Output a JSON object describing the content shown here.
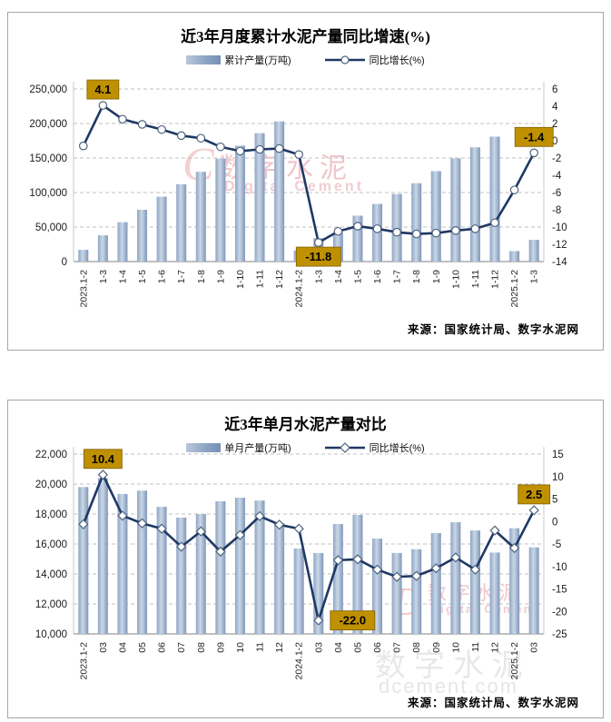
{
  "colors": {
    "bar_gradient": [
      "#8ca5c5",
      "#cbd7e6",
      "#7e97ba"
    ],
    "line": "#1f3864",
    "marker_stroke": "#4f637d",
    "annotation_bg": "#bf9000",
    "annotation_border": "#7f6000",
    "gridline": "#c0c0c0",
    "axis_line": "#9a9a9a"
  },
  "chart_data": [
    {
      "type": "bar+line",
      "title": "近3年月度累计水泥产量同比增速(%)",
      "legend": [
        "累计产量(万吨)",
        "同比增长(%)"
      ],
      "marker": "circle",
      "categories": [
        "2023.1-2",
        "1-3",
        "1-4",
        "1-5",
        "1-6",
        "1-7",
        "1-8",
        "1-9",
        "1-10",
        "1-11",
        "1-12",
        "2024.1-2",
        "1-3",
        "1-4",
        "1-5",
        "1-6",
        "1-7",
        "1-8",
        "1-9",
        "1-10",
        "1-11",
        "1-12",
        "2025.1-2",
        "1-3"
      ],
      "series": [
        {
          "name": "累计产量(万吨)",
          "type": "bar",
          "axis": "left",
          "values": [
            17000,
            38000,
            57000,
            75000,
            94000,
            112000,
            130000,
            149000,
            168000,
            186000,
            203000,
            16000,
            34000,
            42000,
            66500,
            83500,
            98000,
            113500,
            131000,
            149500,
            165500,
            181000,
            15200,
            31500
          ]
        },
        {
          "name": "同比增长(%)",
          "type": "line",
          "axis": "right",
          "values": [
            -0.6,
            4.1,
            2.5,
            1.9,
            1.3,
            0.6,
            0.3,
            -0.7,
            -1.2,
            -1.0,
            -0.9,
            -1.6,
            -11.8,
            -10.5,
            -9.9,
            -10.2,
            -10.6,
            -10.8,
            -10.7,
            -10.4,
            -10.2,
            -9.5,
            -5.7,
            -1.4
          ]
        }
      ],
      "left_axis": {
        "ticks": [
          0,
          50000,
          100000,
          150000,
          200000,
          250000
        ],
        "labels": [
          "0",
          "50,000",
          "100,000",
          "150,000",
          "200,000",
          "250,000"
        ]
      },
      "right_axis": {
        "ticks": [
          -14,
          -12,
          -10,
          -8,
          -6,
          -4,
          -2,
          0,
          2,
          4,
          6
        ],
        "labels": [
          "-14",
          "-12",
          "-10",
          "-8",
          "-6",
          "-4",
          "-2",
          "0",
          "2",
          "4",
          "6"
        ]
      },
      "annotations": [
        {
          "index": 1,
          "text": "4.1",
          "placement": "above"
        },
        {
          "index": 12,
          "text": "-11.8",
          "placement": "below"
        },
        {
          "index": 23,
          "text": "-1.4",
          "placement": "above"
        }
      ],
      "source": "来源：国家统计局、数字水泥网",
      "watermark": {
        "logo_text": "C",
        "cn": "数字水泥",
        "en": "Digital Cement"
      }
    },
    {
      "type": "bar+line",
      "title": "近3年单月水泥产量对比",
      "legend": [
        "单月产量(万吨)",
        "同比增长(%)"
      ],
      "marker": "diamond",
      "categories": [
        "2023.1-2",
        "03",
        "04",
        "05",
        "06",
        "07",
        "08",
        "09",
        "10",
        "11",
        "12",
        "2024.1-2",
        "03",
        "04",
        "05",
        "06",
        "07",
        "08",
        "09",
        "10",
        "11",
        "12",
        "2025.1-2",
        "03"
      ],
      "series": [
        {
          "name": "单月产量(万吨)",
          "type": "bar",
          "axis": "left",
          "values": [
            19800,
            20400,
            19340,
            19560,
            18480,
            17760,
            18000,
            18850,
            19090,
            18900,
            17400,
            15700,
            15400,
            17330,
            17940,
            16360,
            15400,
            15650,
            16730,
            17450,
            16900,
            15430,
            17050,
            15780
          ]
        },
        {
          "name": "同比增长(%)",
          "type": "line",
          "axis": "right",
          "values": [
            -0.6,
            10.4,
            1.3,
            -0.4,
            -1.6,
            -5.6,
            -2.2,
            -6.7,
            -3.0,
            1.2,
            -0.7,
            -1.6,
            -22.0,
            -8.6,
            -8.4,
            -10.7,
            -12.3,
            -12.1,
            -10.4,
            -8.0,
            -10.7,
            -2.0,
            -5.9,
            2.5
          ]
        }
      ],
      "left_axis": {
        "ticks": [
          10000,
          12000,
          14000,
          16000,
          18000,
          20000,
          22000
        ],
        "labels": [
          "10,000",
          "12,000",
          "14,000",
          "16,000",
          "18,000",
          "20,000",
          "22,000"
        ]
      },
      "right_axis": {
        "ticks": [
          -25,
          -20,
          -15,
          -10,
          -5,
          0,
          5,
          10,
          15
        ],
        "labels": [
          "-25",
          "-20",
          "-15",
          "-10",
          "-5",
          "0",
          "5",
          "10",
          "15"
        ]
      },
      "annotations": [
        {
          "index": 1,
          "text": "10.4",
          "placement": "above"
        },
        {
          "index": 12,
          "text": "-22.0",
          "placement": "right"
        },
        {
          "index": 23,
          "text": "2.5",
          "placement": "above"
        }
      ],
      "source": "来源：国家统计局、数字水泥网",
      "watermark": {
        "logo_text": "D",
        "cn": "数字水泥",
        "en": "Digital Cement",
        "cn_big": "数字水泥",
        "domain": "dcement.com"
      }
    }
  ]
}
